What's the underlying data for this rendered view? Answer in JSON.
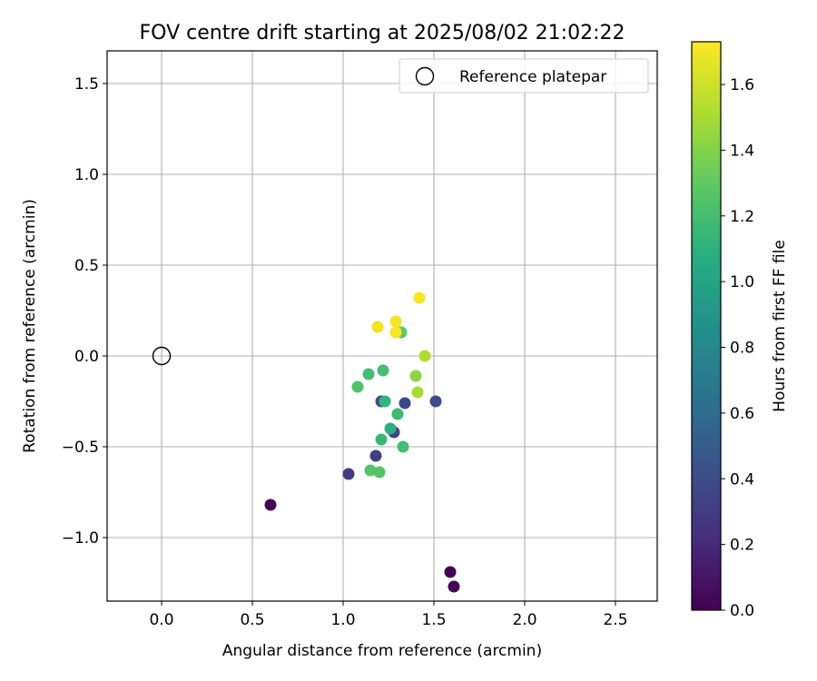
{
  "chart_data": {
    "type": "scatter",
    "title": "FOV centre drift starting at 2025/08/02 21:02:22",
    "xlabel": "Angular distance from reference (arcmin)",
    "ylabel": "Rotation from reference (arcmin)",
    "xlim": [
      -0.3,
      2.73
    ],
    "ylim": [
      -1.35,
      1.68
    ],
    "xticks": [
      0.0,
      0.5,
      1.0,
      1.5,
      2.0,
      2.5
    ],
    "xtick_labels": [
      "0.0",
      "0.5",
      "1.0",
      "1.5",
      "2.0",
      "2.5"
    ],
    "yticks": [
      -1.0,
      -0.5,
      0.0,
      0.5,
      1.0,
      1.5
    ],
    "ytick_labels": [
      "−1.0",
      "−0.5",
      "0.0",
      "0.5",
      "1.0",
      "1.5"
    ],
    "grid": true,
    "legend": {
      "placement": "top-right",
      "entries": [
        "Reference platepar"
      ]
    },
    "reference_point": {
      "x": 0.0,
      "y": 0.0,
      "marker": "open-circle"
    },
    "colorbar": {
      "label": "Hours from first FF file",
      "colormap": "viridis",
      "range": [
        0.0,
        1.73
      ],
      "ticks": [
        0.0,
        0.2,
        0.4,
        0.6,
        0.8,
        1.0,
        1.2,
        1.4,
        1.6
      ],
      "tick_labels": [
        "0.0",
        "0.2",
        "0.4",
        "0.6",
        "0.8",
        "1.0",
        "1.2",
        "1.4",
        "1.6"
      ]
    },
    "points": [
      {
        "x": 0.6,
        "y": -0.82,
        "hours": 0.02
      },
      {
        "x": 1.59,
        "y": -1.19,
        "hours": 0.02
      },
      {
        "x": 1.61,
        "y": -1.27,
        "hours": 0.02
      },
      {
        "x": 1.03,
        "y": -0.65,
        "hours": 0.3
      },
      {
        "x": 1.18,
        "y": -0.55,
        "hours": 0.33
      },
      {
        "x": 1.28,
        "y": -0.42,
        "hours": 0.35
      },
      {
        "x": 1.34,
        "y": -0.26,
        "hours": 0.37
      },
      {
        "x": 1.51,
        "y": -0.25,
        "hours": 0.4
      },
      {
        "x": 1.21,
        "y": -0.25,
        "hours": 0.4
      },
      {
        "x": 1.21,
        "y": -0.46,
        "hours": 1.15
      },
      {
        "x": 1.26,
        "y": -0.4,
        "hours": 1.1
      },
      {
        "x": 1.3,
        "y": -0.32,
        "hours": 1.18
      },
      {
        "x": 1.23,
        "y": -0.25,
        "hours": 1.12
      },
      {
        "x": 1.33,
        "y": -0.5,
        "hours": 1.2
      },
      {
        "x": 1.14,
        "y": -0.1,
        "hours": 1.2
      },
      {
        "x": 1.22,
        "y": -0.08,
        "hours": 1.2
      },
      {
        "x": 1.08,
        "y": -0.17,
        "hours": 1.24
      },
      {
        "x": 1.15,
        "y": -0.63,
        "hours": 1.25
      },
      {
        "x": 1.2,
        "y": -0.64,
        "hours": 1.26
      },
      {
        "x": 1.32,
        "y": 0.13,
        "hours": 1.3
      },
      {
        "x": 1.4,
        "y": -0.11,
        "hours": 1.42
      },
      {
        "x": 1.41,
        "y": -0.2,
        "hours": 1.5
      },
      {
        "x": 1.45,
        "y": 0.0,
        "hours": 1.52
      },
      {
        "x": 1.19,
        "y": 0.16,
        "hours": 1.7
      },
      {
        "x": 1.29,
        "y": 0.19,
        "hours": 1.7
      },
      {
        "x": 1.29,
        "y": 0.13,
        "hours": 1.71
      },
      {
        "x": 1.42,
        "y": 0.32,
        "hours": 1.72
      }
    ]
  }
}
